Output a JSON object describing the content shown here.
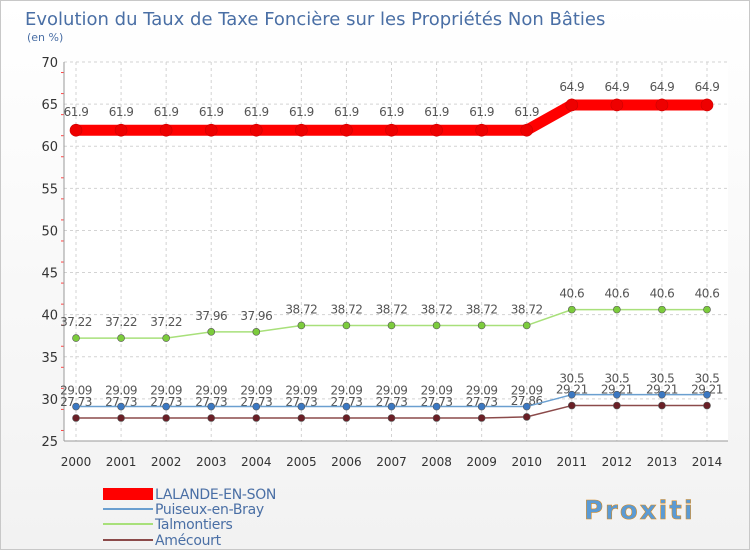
{
  "chart_data": {
    "type": "line",
    "title": "Evolution du Taux de Taxe Foncière sur les Propriétés Non Bâties",
    "unit_label": "(en %)",
    "ylim": [
      25,
      70
    ],
    "y_ticks": [
      "25",
      "30",
      "35",
      "40",
      "45",
      "50",
      "55",
      "60",
      "65",
      "70"
    ],
    "grid": true,
    "legend_position": "bottom-left",
    "categories": [
      "2000",
      "2001",
      "2002",
      "2003",
      "2004",
      "2005",
      "2006",
      "2007",
      "2008",
      "2009",
      "2010",
      "2011",
      "2012",
      "2013",
      "2014"
    ],
    "series": [
      {
        "name": "LALANDE-EN-SON",
        "values": [
          61.9,
          61.9,
          61.9,
          61.9,
          61.9,
          61.9,
          61.9,
          61.9,
          61.9,
          61.9,
          61.9,
          64.9,
          64.9,
          64.9,
          64.9
        ],
        "labels": [
          "61.9",
          "61.9",
          "61.9",
          "61.9",
          "61.9",
          "61.9",
          "61.9",
          "61.9",
          "61.9",
          "61.9",
          "61.9",
          "64.9",
          "64.9",
          "64.9",
          "64.9"
        ],
        "color": "#ff0000",
        "marker_color": "#ee0000"
      },
      {
        "name": "Puiseux-en-Bray",
        "values": [
          29.09,
          29.09,
          29.09,
          29.09,
          29.09,
          29.09,
          29.09,
          29.09,
          29.09,
          29.09,
          29.09,
          30.5,
          30.5,
          30.5,
          30.5
        ],
        "labels": [
          "29.09",
          "29.09",
          "29.09",
          "29.09",
          "29.09",
          "29.09",
          "29.09",
          "29.09",
          "29.09",
          "29.09",
          "29.09",
          "30.5",
          "30.5",
          "30.5",
          "30.5"
        ],
        "color": "#6a9fd0",
        "marker_color": "#3b78c2"
      },
      {
        "name": "Talmontiers",
        "values": [
          37.22,
          37.22,
          37.22,
          37.96,
          37.96,
          38.72,
          38.72,
          38.72,
          38.72,
          38.72,
          38.72,
          40.6,
          40.6,
          40.6,
          40.6
        ],
        "labels": [
          "37.22",
          "37.22",
          "37.22",
          "37.96",
          "37.96",
          "38.72",
          "38.72",
          "38.72",
          "38.72",
          "38.72",
          "38.72",
          "40.6",
          "40.6",
          "40.6",
          "40.6"
        ],
        "color": "#a8e07a",
        "marker_color": "#7ccc3c"
      },
      {
        "name": "Amécourt",
        "values": [
          27.73,
          27.73,
          27.73,
          27.73,
          27.73,
          27.73,
          27.73,
          27.73,
          27.73,
          27.73,
          27.86,
          29.21,
          29.21,
          29.21,
          29.21
        ],
        "labels": [
          "27.73",
          "27.73",
          "27.73",
          "27.73",
          "27.73",
          "27.73",
          "27.73",
          "27.73",
          "27.73",
          "27.73",
          "27.86",
          "29.21",
          "29.21",
          "29.21",
          "29.21"
        ],
        "color": "#8b4a4a",
        "marker_color": "#6a1f26"
      }
    ]
  },
  "brand": {
    "logo_text": "Proxiti"
  }
}
